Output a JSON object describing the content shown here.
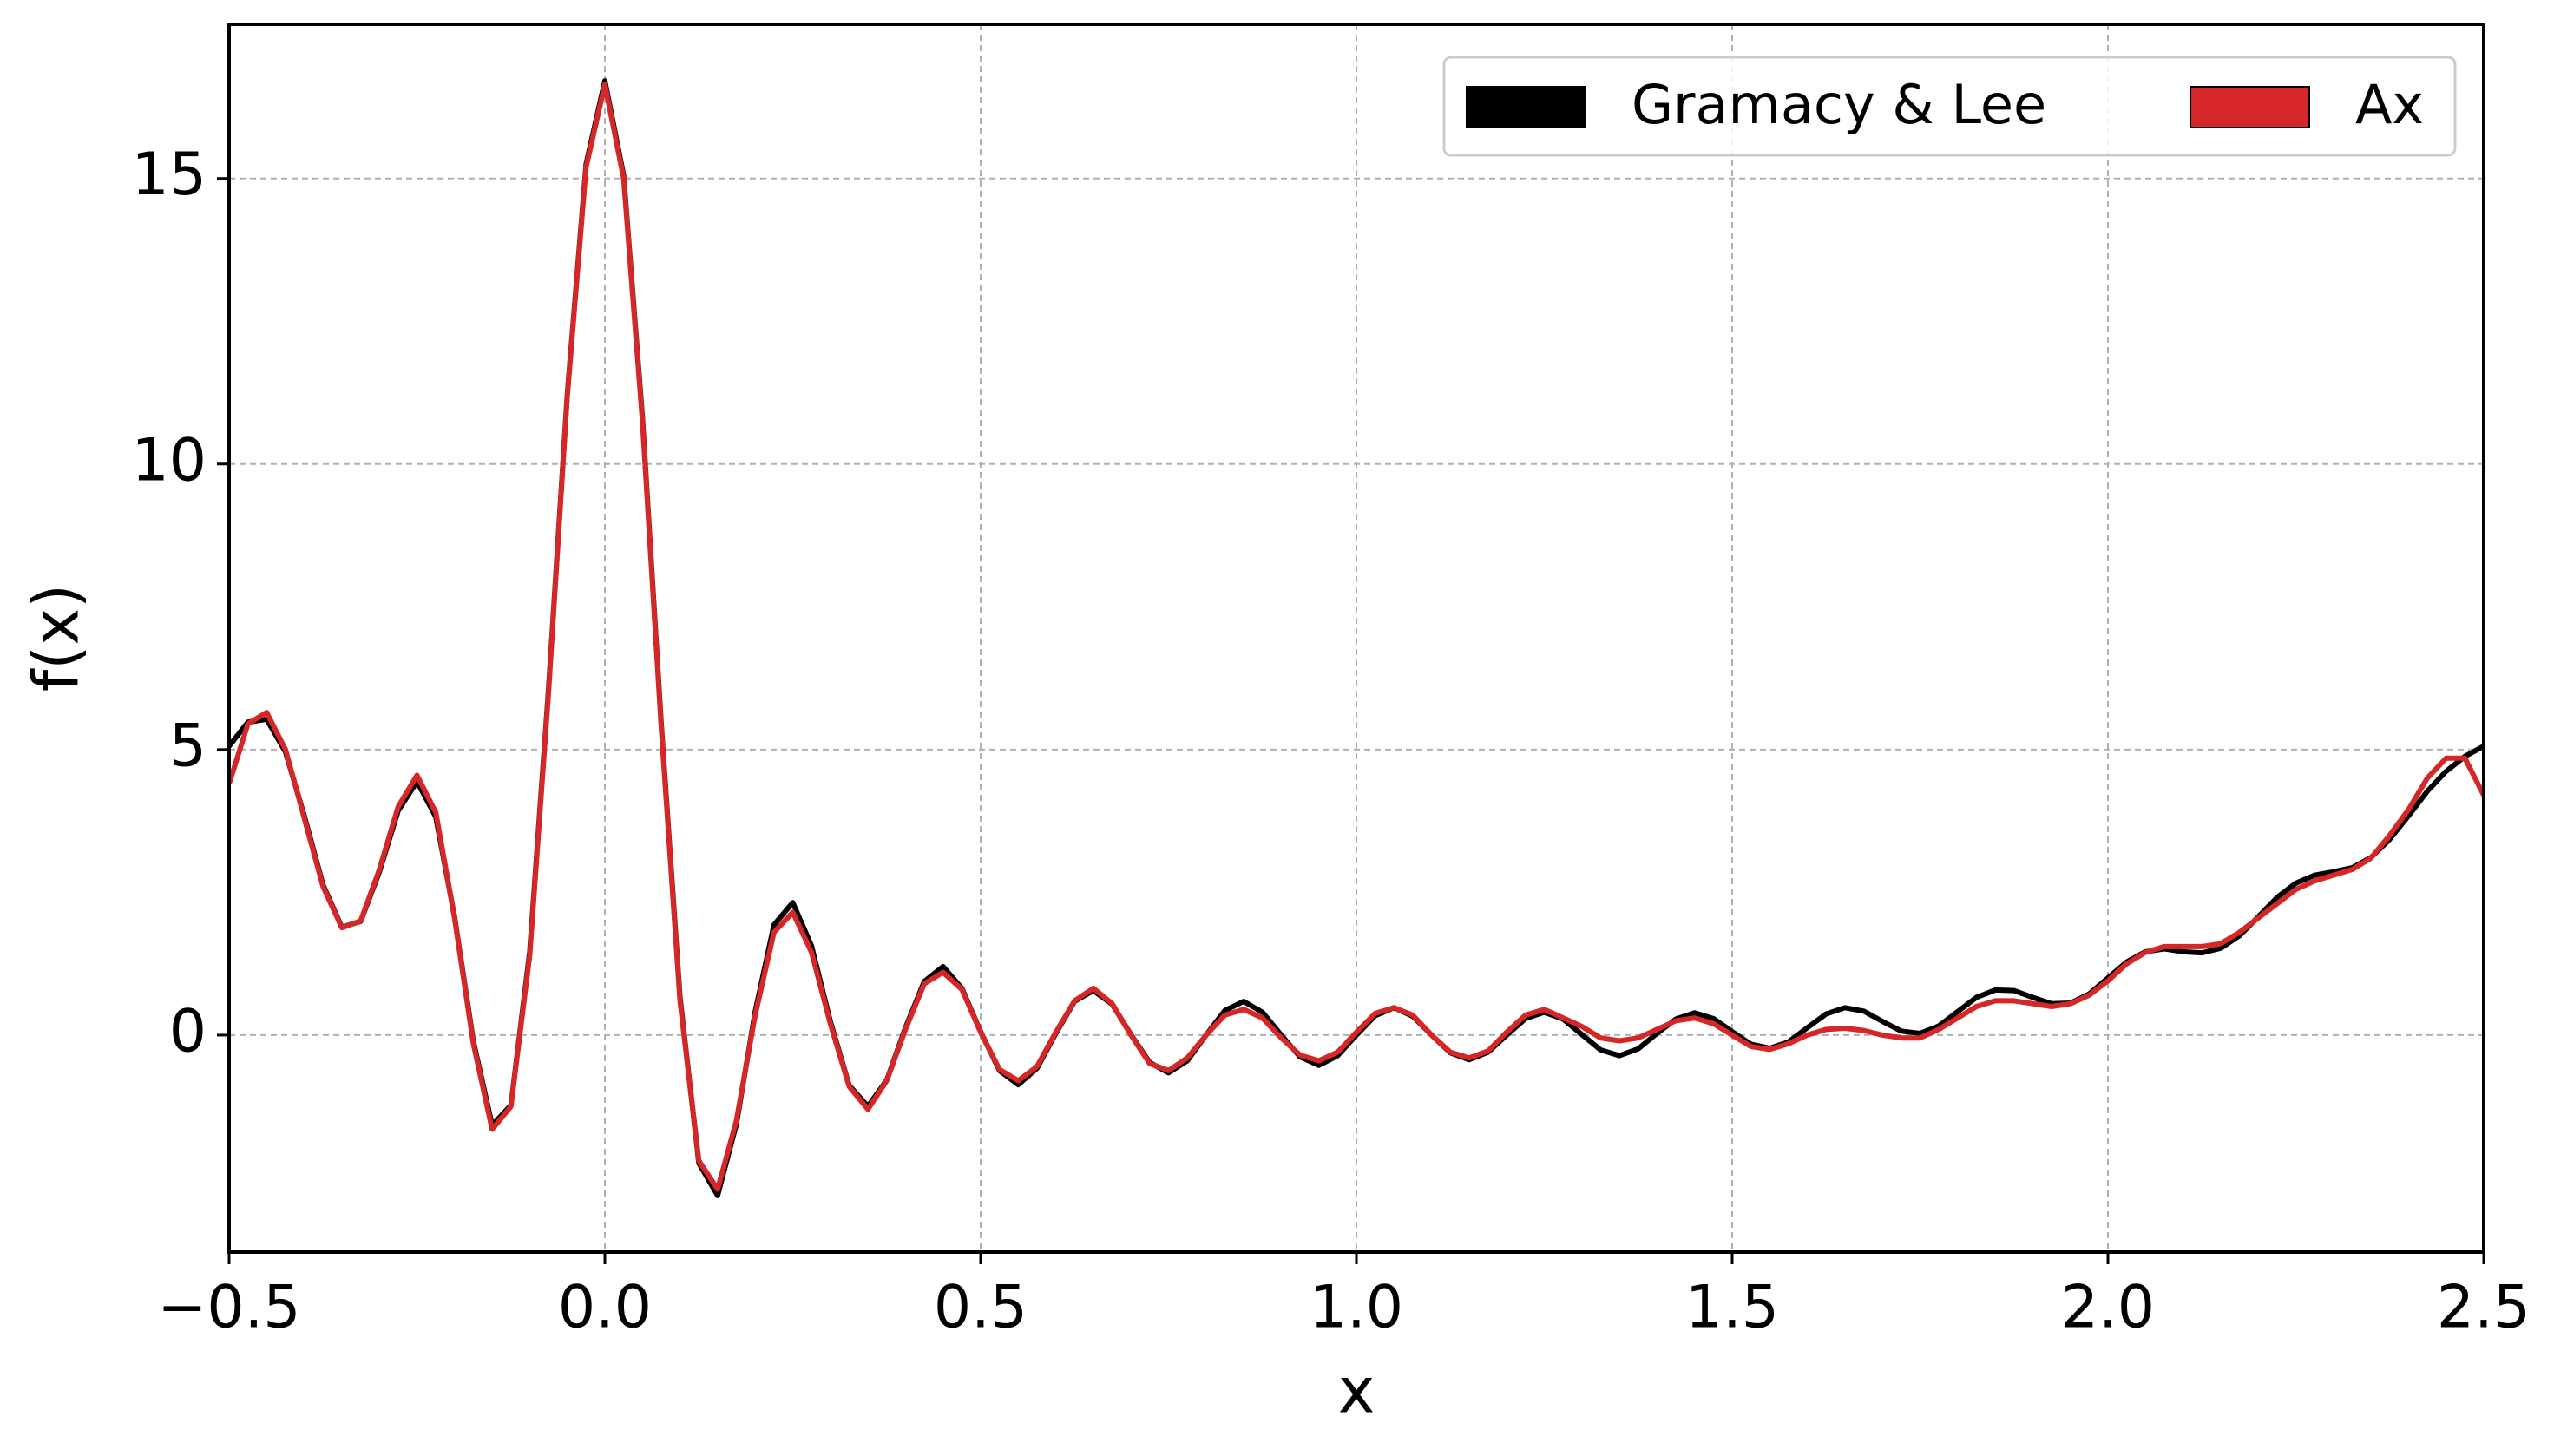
{
  "chart_data": {
    "type": "line",
    "x_label": "x",
    "y_label": "f(x)",
    "x": [
      -0.5,
      -0.475,
      -0.45,
      -0.425,
      -0.4,
      -0.375,
      -0.35,
      -0.325,
      -0.3,
      -0.275,
      -0.25,
      -0.225,
      -0.2,
      -0.175,
      -0.15,
      -0.125,
      -0.1,
      -0.075,
      -0.05,
      -0.025,
      0,
      0.025,
      0.05,
      0.075,
      0.1,
      0.125,
      0.15,
      0.175,
      0.2,
      0.225,
      0.25,
      0.275,
      0.3,
      0.325,
      0.35,
      0.375,
      0.4,
      0.425,
      0.45,
      0.475,
      0.5,
      0.525,
      0.55,
      0.575,
      0.6,
      0.625,
      0.65,
      0.675,
      0.7,
      0.725,
      0.75,
      0.775,
      0.8,
      0.825,
      0.85,
      0.875,
      0.9,
      0.925,
      0.95,
      0.975,
      1,
      1.025,
      1.05,
      1.075,
      1.1,
      1.125,
      1.15,
      1.175,
      1.2,
      1.225,
      1.25,
      1.275,
      1.3,
      1.325,
      1.35,
      1.375,
      1.4,
      1.425,
      1.45,
      1.475,
      1.5,
      1.525,
      1.55,
      1.575,
      1.6,
      1.625,
      1.65,
      1.675,
      1.7,
      1.725,
      1.75,
      1.775,
      1.8,
      1.825,
      1.85,
      1.875,
      1.9,
      1.925,
      1.95,
      1.975,
      2,
      2.025,
      2.05,
      2.075,
      2.1,
      2.125,
      2.15,
      2.175,
      2.2,
      2.225,
      2.25,
      2.275,
      2.3,
      2.325,
      2.35,
      2.375,
      2.4,
      2.425,
      2.45,
      2.475,
      2.5
    ],
    "series": [
      {
        "name": "Gramacy & Lee",
        "color": "#000000",
        "values": [
          5.06,
          5.48,
          5.53,
          4.96,
          3.84,
          2.63,
          1.89,
          1.99,
          2.86,
          3.93,
          4.44,
          3.82,
          2.07,
          -0.11,
          -1.58,
          -1.23,
          1.46,
          6.05,
          11.22,
          15.25,
          16.71,
          15.05,
          10.81,
          5.45,
          0.66,
          -2.24,
          -2.81,
          -1.56,
          0.41,
          1.93,
          2.32,
          1.56,
          0.24,
          -0.88,
          -1.25,
          -0.79,
          0.13,
          0.94,
          1.2,
          0.82,
          0.06,
          -0.62,
          -0.87,
          -0.58,
          0.03,
          0.59,
          0.78,
          0.54,
          0.01,
          -0.48,
          -0.66,
          -0.45,
          0,
          0.43,
          0.59,
          0.4,
          0,
          -0.38,
          -0.53,
          -0.36,
          0,
          0.34,
          0.48,
          0.33,
          0,
          -0.31,
          -0.43,
          -0.3,
          0,
          0.29,
          0.4,
          0.28,
          0.01,
          -0.26,
          -0.36,
          -0.24,
          0.03,
          0.28,
          0.39,
          0.29,
          0.06,
          -0.16,
          -0.23,
          -0.12,
          0.13,
          0.37,
          0.48,
          0.42,
          0.24,
          0.07,
          0.03,
          0.16,
          0.41,
          0.66,
          0.79,
          0.78,
          0.66,
          0.55,
          0.56,
          0.72,
          1,
          1.28,
          1.46,
          1.51,
          1.46,
          1.44,
          1.52,
          1.74,
          2.07,
          2.41,
          2.66,
          2.8,
          2.86,
          2.93,
          3.11,
          3.43,
          3.84,
          4.27,
          4.62,
          4.88,
          5.06
        ]
      },
      {
        "name": "Ax",
        "color": "#d62728",
        "values": [
          4.4,
          5.45,
          5.65,
          5.0,
          3.8,
          2.6,
          1.88,
          2.0,
          2.9,
          4.0,
          4.55,
          3.9,
          2.05,
          -0.15,
          -1.65,
          -1.25,
          1.4,
          6.0,
          11.2,
          15.2,
          16.65,
          15.0,
          10.75,
          5.4,
          0.6,
          -2.2,
          -2.7,
          -1.5,
          0.35,
          1.8,
          2.15,
          1.45,
          0.2,
          -0.9,
          -1.3,
          -0.8,
          0.1,
          0.9,
          1.1,
          0.8,
          0.05,
          -0.6,
          -0.8,
          -0.55,
          0.05,
          0.6,
          0.82,
          0.55,
          0.0,
          -0.5,
          -0.62,
          -0.4,
          0.0,
          0.35,
          0.45,
          0.3,
          -0.05,
          -0.35,
          -0.45,
          -0.3,
          0.05,
          0.38,
          0.48,
          0.35,
          0.0,
          -0.3,
          -0.4,
          -0.28,
          0.05,
          0.35,
          0.45,
          0.3,
          0.15,
          -0.05,
          -0.1,
          -0.05,
          0.1,
          0.25,
          0.3,
          0.2,
          0.0,
          -0.2,
          -0.25,
          -0.15,
          0.0,
          0.1,
          0.12,
          0.08,
          0.0,
          -0.05,
          -0.05,
          0.1,
          0.3,
          0.5,
          0.6,
          0.6,
          0.55,
          0.5,
          0.55,
          0.7,
          0.95,
          1.25,
          1.45,
          1.55,
          1.55,
          1.55,
          1.6,
          1.8,
          2.05,
          2.3,
          2.55,
          2.7,
          2.8,
          2.9,
          3.1,
          3.5,
          3.95,
          4.5,
          4.85,
          4.85,
          4.2
        ]
      }
    ],
    "xlim": [
      -0.5,
      2.5
    ],
    "ylim": [
      -3.8,
      17.7
    ],
    "xticks": [
      {
        "value": -0.5,
        "label": "−0.5"
      },
      {
        "value": 0,
        "label": "0.0"
      },
      0.5,
      {
        "value": 1,
        "label": "1.0"
      },
      1.5,
      {
        "value": 2,
        "label": "2.0"
      },
      2.5
    ],
    "yticks": [
      0,
      5,
      10,
      15
    ],
    "grid": true,
    "legend": "upper right"
  }
}
